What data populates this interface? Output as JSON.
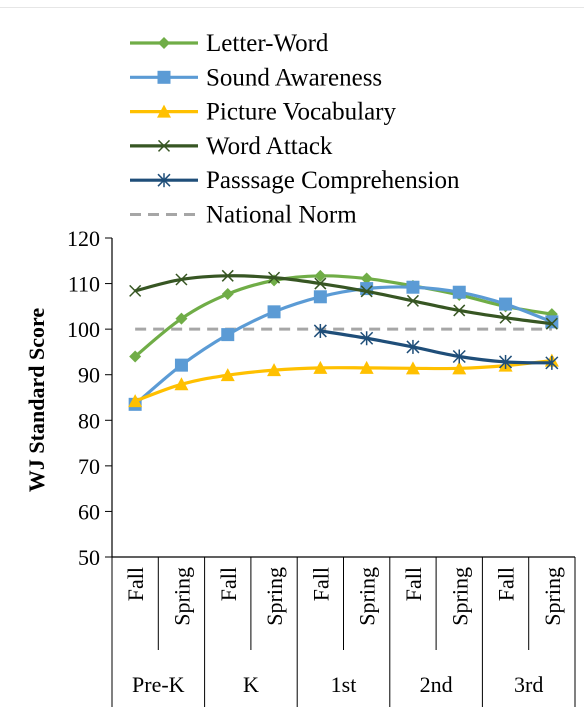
{
  "chart_data": {
    "type": "line",
    "ylabel": "WJ Standard  Score",
    "ylim": [
      50,
      120
    ],
    "yticks": [
      "50",
      "60",
      "70",
      "80",
      "90",
      "100",
      "110",
      "120"
    ],
    "x": [
      "Fall",
      "Spring",
      "Fall",
      "Spring",
      "Fall",
      "Spring",
      "Fall",
      "Spring",
      "Fall",
      "Spring"
    ],
    "groups": [
      "Pre-K",
      "K",
      "1st",
      "2nd",
      "3rd"
    ],
    "legend_position": "top",
    "series": [
      {
        "name": "Letter-Word",
        "color": "#70ad47",
        "marker": "diamond",
        "dash": false,
        "values": [
          94,
          102.3,
          107.7,
          110.7,
          111.7,
          111.1,
          109.5,
          107.5,
          105,
          103.3
        ]
      },
      {
        "name": "Sound Awareness",
        "color": "#5b9bd5",
        "marker": "square",
        "dash": false,
        "values": [
          83.5,
          92.1,
          98.8,
          103.8,
          107.1,
          108.9,
          109.2,
          108.1,
          105.5,
          101.6
        ]
      },
      {
        "name": "Picture Vocabulary",
        "color": "#ffc000",
        "marker": "triangle",
        "dash": false,
        "values": [
          84.2,
          87.9,
          89.9,
          91,
          91.5,
          91.5,
          91.4,
          91.4,
          92,
          93.1
        ]
      },
      {
        "name": "Word Attack",
        "color": "#375623",
        "marker": "x",
        "dash": false,
        "values": [
          108.4,
          110.9,
          111.7,
          111.3,
          110,
          108.3,
          106.2,
          104.1,
          102.5,
          101.2
        ]
      },
      {
        "name": "Passsage Comprehension",
        "color": "#1f4e79",
        "marker": "star",
        "dash": false,
        "values": [
          null,
          null,
          null,
          null,
          99.6,
          98,
          96.1,
          94,
          92.8,
          92.6
        ]
      },
      {
        "name": "National Norm",
        "color": "#a6a6a6",
        "marker": "none",
        "dash": true,
        "values": [
          100,
          100,
          100,
          100,
          100,
          100,
          100,
          100,
          100,
          100
        ]
      }
    ]
  }
}
